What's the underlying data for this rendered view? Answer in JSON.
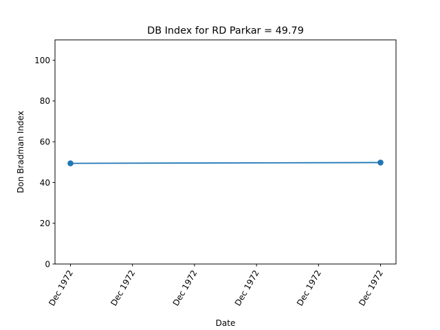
{
  "chart_data": {
    "type": "line",
    "title": "DB Index for RD Parkar = 49.79",
    "xlabel": "Date",
    "ylabel": "Don Bradman Index",
    "ylim": [
      0,
      110
    ],
    "yticks": [
      0,
      20,
      40,
      60,
      80,
      100
    ],
    "xticks": [
      "Dec 1972",
      "Dec 1972",
      "Dec 1972",
      "Dec 1972",
      "Dec 1972",
      "Dec 1972"
    ],
    "grid": false,
    "series": [
      {
        "color": "#1f77b4",
        "marker": "circle",
        "x": [
          "Dec 1972",
          "Dec 1972"
        ],
        "values": [
          49.4,
          49.79
        ]
      }
    ]
  }
}
